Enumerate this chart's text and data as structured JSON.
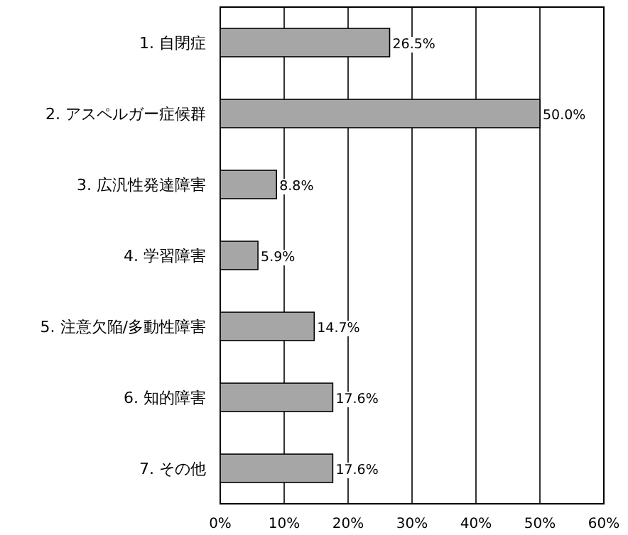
{
  "chart_data": {
    "type": "bar",
    "orientation": "horizontal",
    "categories": [
      "1. 自閉症",
      "2. アスペルガー症候群",
      "3. 広汎性発達障害",
      "4. 学習障害",
      "5. 注意欠陥/多動性障害",
      "6. 知的障害",
      "7. その他"
    ],
    "values": [
      26.5,
      50.0,
      8.8,
      5.9,
      14.7,
      17.6,
      17.6
    ],
    "value_labels": [
      "26.5%",
      "50.0%",
      "8.8%",
      "5.9%",
      "14.7%",
      "17.6%",
      "17.6%"
    ],
    "color": "#a6a6a6",
    "xlim": [
      0,
      60
    ],
    "xticks": [
      {
        "value": 0,
        "label": "0%"
      },
      {
        "value": 10,
        "label": "10%"
      },
      {
        "value": 20,
        "label": "20%"
      },
      {
        "value": 30,
        "label": "30%"
      },
      {
        "value": 40,
        "label": "40%"
      },
      {
        "value": 50,
        "label": "50%"
      },
      {
        "value": 60,
        "label": "60%"
      }
    ],
    "grid": "x"
  }
}
